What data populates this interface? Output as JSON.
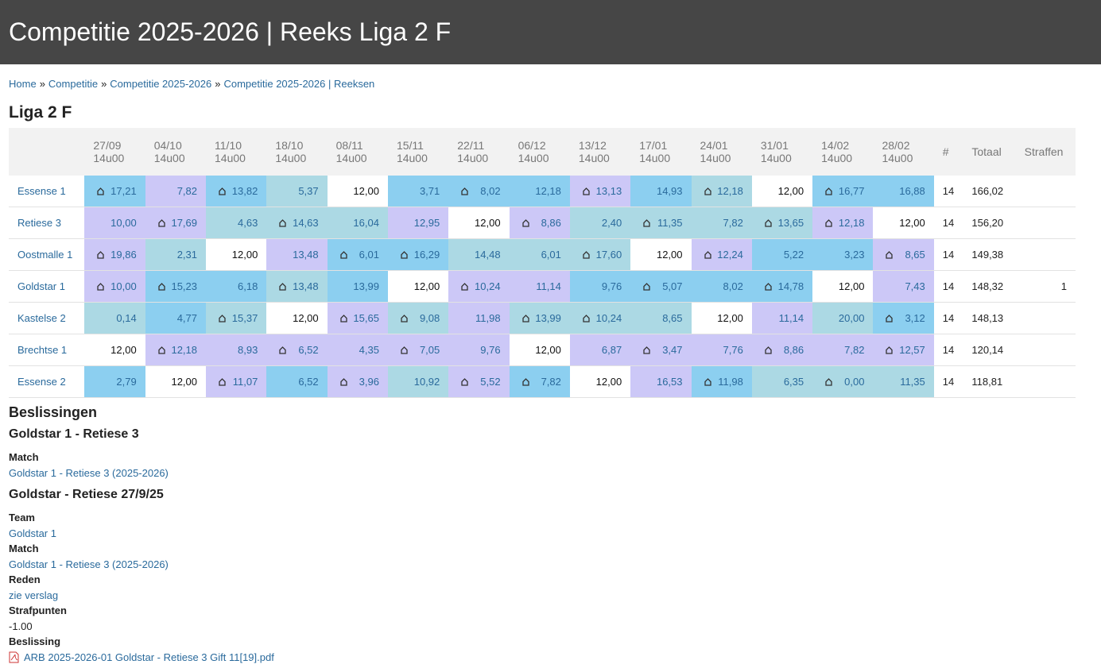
{
  "header": {
    "title": "Competitie 2025-2026 | Reeks Liga 2 F"
  },
  "breadcrumb": {
    "items": [
      "Home",
      "Competitie",
      "Competitie 2025-2026",
      "Competitie 2025-2026 | Reeksen"
    ],
    "separator": "»"
  },
  "section_title": "Liga 2 F",
  "table": {
    "columns": [
      {
        "date": "27/09",
        "time": "14u00"
      },
      {
        "date": "04/10",
        "time": "14u00"
      },
      {
        "date": "11/10",
        "time": "14u00"
      },
      {
        "date": "18/10",
        "time": "14u00"
      },
      {
        "date": "08/11",
        "time": "14u00"
      },
      {
        "date": "15/11",
        "time": "14u00"
      },
      {
        "date": "22/11",
        "time": "14u00"
      },
      {
        "date": "06/12",
        "time": "14u00"
      },
      {
        "date": "13/12",
        "time": "14u00"
      },
      {
        "date": "17/01",
        "time": "14u00"
      },
      {
        "date": "24/01",
        "time": "14u00"
      },
      {
        "date": "31/01",
        "time": "14u00"
      },
      {
        "date": "14/02",
        "time": "14u00"
      },
      {
        "date": "28/02",
        "time": "14u00"
      }
    ],
    "extra_headers": [
      "#",
      "Totaal",
      "Straffen"
    ],
    "rows": [
      {
        "team": "Essense 1",
        "count": "14",
        "total": "166,02",
        "cells": [
          {
            "value": "17,21",
            "home": true,
            "color": "#8ccff0"
          },
          {
            "value": "7,82",
            "home": false,
            "color": "#ccc8f7"
          },
          {
            "value": "13,82",
            "home": true,
            "color": "#8ccff0"
          },
          {
            "value": "5,37",
            "home": false,
            "color": "#acd9e4"
          },
          {
            "value": "12,00",
            "home": false,
            "color": "#ffffff"
          },
          {
            "value": "3,71",
            "home": false,
            "color": "#8ccff0"
          },
          {
            "value": "8,02",
            "home": true,
            "color": "#8ccff0"
          },
          {
            "value": "12,18",
            "home": false,
            "color": "#8ccff0"
          },
          {
            "value": "13,13",
            "home": true,
            "color": "#ccc8f7"
          },
          {
            "value": "14,93",
            "home": false,
            "color": "#8ccff0"
          },
          {
            "value": "12,18",
            "home": true,
            "color": "#acd9e4"
          },
          {
            "value": "12,00",
            "home": false,
            "color": "#ffffff"
          },
          {
            "value": "16,77",
            "home": true,
            "color": "#8ccff0"
          },
          {
            "value": "16,88",
            "home": false,
            "color": "#8ccff0"
          }
        ]
      },
      {
        "team": "Retiese 3",
        "count": "14",
        "total": "156,20",
        "cells": [
          {
            "value": "10,00",
            "home": false,
            "color": "#ccc8f7"
          },
          {
            "value": "17,69",
            "home": true,
            "color": "#ccc8f7"
          },
          {
            "value": "4,63",
            "home": false,
            "color": "#acd9e4"
          },
          {
            "value": "14,63",
            "home": true,
            "color": "#acd9e4"
          },
          {
            "value": "16,04",
            "home": false,
            "color": "#acd9e4"
          },
          {
            "value": "12,95",
            "home": false,
            "color": "#ccc8f7"
          },
          {
            "value": "12,00",
            "home": false,
            "color": "#ffffff"
          },
          {
            "value": "8,86",
            "home": true,
            "color": "#ccc8f7"
          },
          {
            "value": "2,40",
            "home": false,
            "color": "#acd9e4"
          },
          {
            "value": "11,35",
            "home": true,
            "color": "#acd9e4"
          },
          {
            "value": "7,82",
            "home": false,
            "color": "#acd9e4"
          },
          {
            "value": "13,65",
            "home": true,
            "color": "#acd9e4"
          },
          {
            "value": "12,18",
            "home": true,
            "color": "#ccc8f7"
          },
          {
            "value": "12,00",
            "home": false,
            "color": "#ffffff"
          }
        ]
      },
      {
        "team": "Oostmalle 1",
        "count": "14",
        "total": "149,38",
        "cells": [
          {
            "value": "19,86",
            "home": true,
            "color": "#ccc8f7"
          },
          {
            "value": "2,31",
            "home": false,
            "color": "#acd9e4"
          },
          {
            "value": "12,00",
            "home": false,
            "color": "#ffffff"
          },
          {
            "value": "13,48",
            "home": false,
            "color": "#ccc8f7"
          },
          {
            "value": "6,01",
            "home": true,
            "color": "#8ccff0"
          },
          {
            "value": "16,29",
            "home": true,
            "color": "#8ccff0"
          },
          {
            "value": "14,48",
            "home": false,
            "color": "#acd9e4"
          },
          {
            "value": "6,01",
            "home": false,
            "color": "#acd9e4"
          },
          {
            "value": "17,60",
            "home": true,
            "color": "#acd9e4"
          },
          {
            "value": "12,00",
            "home": false,
            "color": "#ffffff"
          },
          {
            "value": "12,24",
            "home": true,
            "color": "#ccc8f7"
          },
          {
            "value": "5,22",
            "home": false,
            "color": "#8ccff0"
          },
          {
            "value": "3,23",
            "home": false,
            "color": "#8ccff0"
          },
          {
            "value": "8,65",
            "home": true,
            "color": "#ccc8f7"
          }
        ]
      },
      {
        "team": "Goldstar 1",
        "count": "14",
        "total": "148,32",
        "penalty": "1",
        "cells": [
          {
            "value": "10,00",
            "home": true,
            "color": "#ccc8f7"
          },
          {
            "value": "15,23",
            "home": true,
            "color": "#8ccff0"
          },
          {
            "value": "6,18",
            "home": false,
            "color": "#8ccff0"
          },
          {
            "value": "13,48",
            "home": true,
            "color": "#acd9e4"
          },
          {
            "value": "13,99",
            "home": false,
            "color": "#8ccff0"
          },
          {
            "value": "12,00",
            "home": false,
            "color": "#ffffff"
          },
          {
            "value": "10,24",
            "home": true,
            "color": "#ccc8f7"
          },
          {
            "value": "11,14",
            "home": false,
            "color": "#ccc8f7"
          },
          {
            "value": "9,76",
            "home": false,
            "color": "#8ccff0"
          },
          {
            "value": "5,07",
            "home": true,
            "color": "#8ccff0"
          },
          {
            "value": "8,02",
            "home": false,
            "color": "#8ccff0"
          },
          {
            "value": "14,78",
            "home": true,
            "color": "#8ccff0"
          },
          {
            "value": "12,00",
            "home": false,
            "color": "#ffffff"
          },
          {
            "value": "7,43",
            "home": false,
            "color": "#ccc8f7"
          }
        ]
      },
      {
        "team": "Kastelse 2",
        "count": "14",
        "total": "148,13",
        "cells": [
          {
            "value": "0,14",
            "home": false,
            "color": "#acd9e4"
          },
          {
            "value": "4,77",
            "home": false,
            "color": "#8ccff0"
          },
          {
            "value": "15,37",
            "home": true,
            "color": "#acd9e4"
          },
          {
            "value": "12,00",
            "home": false,
            "color": "#ffffff"
          },
          {
            "value": "15,65",
            "home": true,
            "color": "#ccc8f7"
          },
          {
            "value": "9,08",
            "home": true,
            "color": "#acd9e4"
          },
          {
            "value": "11,98",
            "home": false,
            "color": "#ccc8f7"
          },
          {
            "value": "13,99",
            "home": true,
            "color": "#acd9e4"
          },
          {
            "value": "10,24",
            "home": true,
            "color": "#acd9e4"
          },
          {
            "value": "8,65",
            "home": false,
            "color": "#acd9e4"
          },
          {
            "value": "12,00",
            "home": false,
            "color": "#ffffff"
          },
          {
            "value": "11,14",
            "home": false,
            "color": "#ccc8f7"
          },
          {
            "value": "20,00",
            "home": false,
            "color": "#acd9e4"
          },
          {
            "value": "3,12",
            "home": true,
            "color": "#8ccff0"
          }
        ]
      },
      {
        "team": "Brechtse 1",
        "count": "14",
        "total": "120,14",
        "cells": [
          {
            "value": "12,00",
            "home": false,
            "color": "#ffffff"
          },
          {
            "value": "12,18",
            "home": true,
            "color": "#ccc8f7"
          },
          {
            "value": "8,93",
            "home": false,
            "color": "#ccc8f7"
          },
          {
            "value": "6,52",
            "home": true,
            "color": "#ccc8f7"
          },
          {
            "value": "4,35",
            "home": false,
            "color": "#ccc8f7"
          },
          {
            "value": "7,05",
            "home": true,
            "color": "#ccc8f7"
          },
          {
            "value": "9,76",
            "home": false,
            "color": "#ccc8f7"
          },
          {
            "value": "12,00",
            "home": false,
            "color": "#ffffff"
          },
          {
            "value": "6,87",
            "home": false,
            "color": "#ccc8f7"
          },
          {
            "value": "3,47",
            "home": true,
            "color": "#ccc8f7"
          },
          {
            "value": "7,76",
            "home": false,
            "color": "#ccc8f7"
          },
          {
            "value": "8,86",
            "home": true,
            "color": "#ccc8f7"
          },
          {
            "value": "7,82",
            "home": false,
            "color": "#ccc8f7"
          },
          {
            "value": "12,57",
            "home": true,
            "color": "#ccc8f7"
          }
        ]
      },
      {
        "team": "Essense 2",
        "count": "14",
        "total": "118,81",
        "cells": [
          {
            "value": "2,79",
            "home": false,
            "color": "#8ccff0"
          },
          {
            "value": "12,00",
            "home": false,
            "color": "#ffffff"
          },
          {
            "value": "11,07",
            "home": true,
            "color": "#ccc8f7"
          },
          {
            "value": "6,52",
            "home": false,
            "color": "#8ccff0"
          },
          {
            "value": "3,96",
            "home": true,
            "color": "#ccc8f7"
          },
          {
            "value": "10,92",
            "home": false,
            "color": "#acd9e4"
          },
          {
            "value": "5,52",
            "home": true,
            "color": "#ccc8f7"
          },
          {
            "value": "7,82",
            "home": true,
            "color": "#8ccff0"
          },
          {
            "value": "12,00",
            "home": false,
            "color": "#ffffff"
          },
          {
            "value": "16,53",
            "home": false,
            "color": "#ccc8f7"
          },
          {
            "value": "11,98",
            "home": true,
            "color": "#8ccff0"
          },
          {
            "value": "6,35",
            "home": false,
            "color": "#acd9e4"
          },
          {
            "value": "0,00",
            "home": true,
            "color": "#acd9e4"
          },
          {
            "value": "11,35",
            "home": false,
            "color": "#acd9e4"
          }
        ]
      }
    ]
  },
  "decisions": {
    "title": "Beslissingen",
    "items": [
      {
        "title": "Goldstar 1 - Retiese 3",
        "fields": [
          {
            "label": "Match",
            "value": "Goldstar 1 - Retiese 3 (2025-2026)",
            "link": true
          }
        ]
      },
      {
        "title": "Goldstar - Retiese 27/9/25",
        "fields": [
          {
            "label": "Team",
            "value": "Goldstar 1",
            "link": true
          },
          {
            "label": "Match",
            "value": "Goldstar 1 - Retiese 3 (2025-2026)",
            "link": true
          },
          {
            "label": "Reden",
            "value": "zie verslag",
            "link": true
          },
          {
            "label": "Strafpunten",
            "value": "-1.00",
            "link": false
          },
          {
            "label": "Beslissing",
            "value": "ARB 2025-2026-01 Goldstar - Retiese 3 Gift 11[19].pdf",
            "link": true,
            "file": true
          }
        ]
      }
    ]
  }
}
